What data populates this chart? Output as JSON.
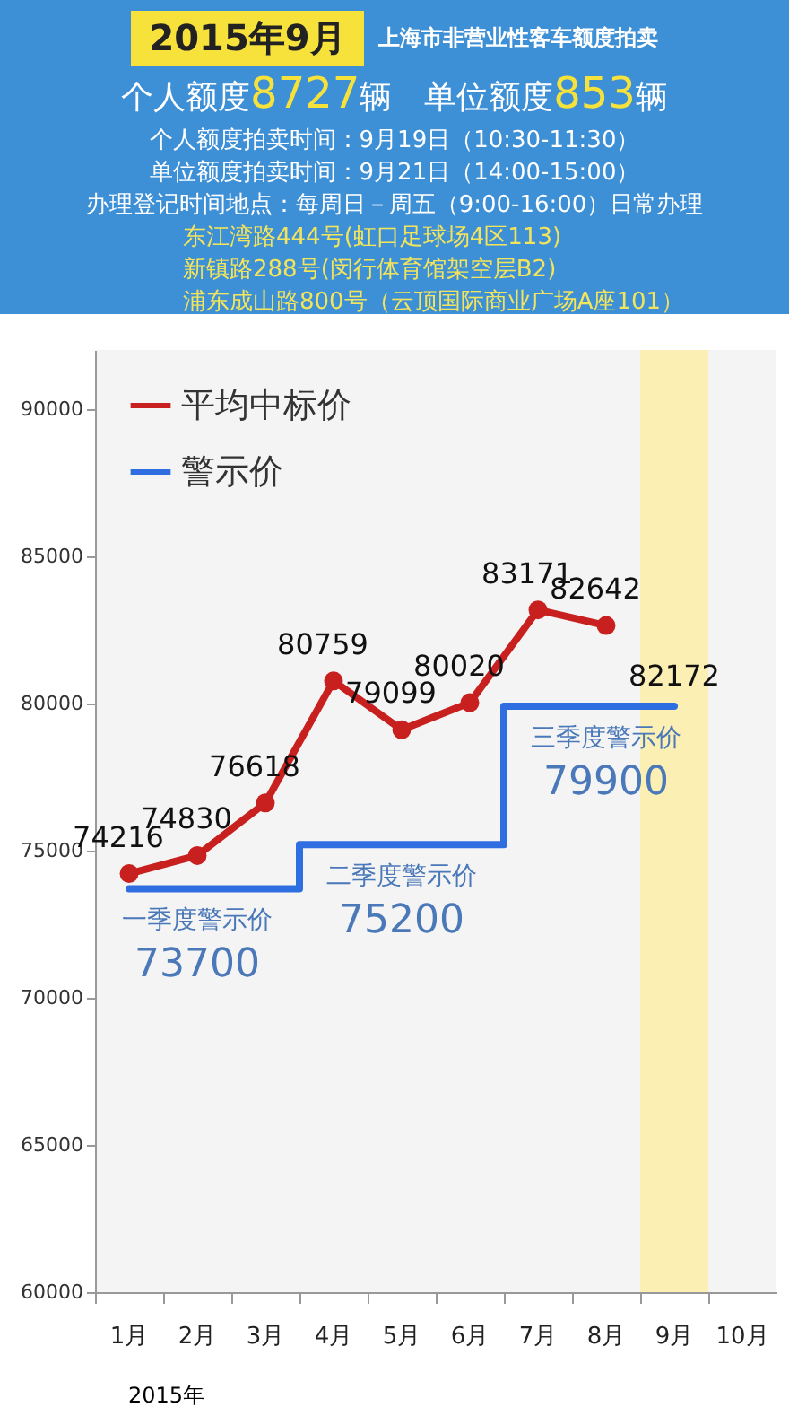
{
  "chart_data": {
    "type": "line",
    "title": "2015年9月",
    "subtitle": "上海市非营业性客车额度拍卖",
    "xlabel": "2015年",
    "categories": [
      "1月",
      "2月",
      "3月",
      "4月",
      "5月",
      "6月",
      "7月",
      "8月",
      "9月",
      "10月"
    ],
    "series": [
      {
        "name": "平均中标价",
        "color": "#c8201e",
        "marker": "circle",
        "values": [
          74216,
          74830,
          76618,
          80759,
          79099,
          80020,
          83171,
          82642,
          null,
          null
        ],
        "value_labels": [
          "74216",
          "74830",
          "76618",
          "80759",
          "79099",
          "80020",
          "83171",
          "82642",
          null,
          null
        ]
      },
      {
        "name": "警示价",
        "type": "step",
        "color": "#2f6ee0",
        "marker": "none",
        "values": [
          73700,
          73700,
          73700,
          75200,
          75200,
          75200,
          79900,
          79900,
          79900,
          null
        ],
        "value_labels": [
          null,
          "73700",
          null,
          null,
          "75200",
          null,
          null,
          "79900",
          null,
          null
        ]
      }
    ],
    "ylim": [
      60000,
      92000
    ],
    "yticks": [
      60000,
      65000,
      70000,
      75000,
      80000,
      85000,
      90000
    ],
    "grid": false,
    "legend": "top left",
    "bands": [
      {
        "axis": "x",
        "from": "9月",
        "to": "9月",
        "color": "#fbefb4"
      }
    ],
    "annotations": [
      "个人额度8727辆　单位额度853辆",
      "个人额度拍卖时间：9月19日（10:30-11:30）",
      "单位额度拍卖时间：9月21日（14:00-15:00）",
      "办理登记时间地点：每周日－周五（9:00-16:00）日常办理",
      "东江湾路444号(虹口足球场4区113)",
      "新镇路288号(闵行体育馆架空层B2)",
      "浦东成山路800号（云顶国际商业广场A座101）",
      {
        "text": "一季度警示价",
        "x": "2月",
        "y": 73700
      },
      {
        "text": "二季度警示价",
        "x": "5月",
        "y": 75200
      },
      {
        "text": "三季度警示价",
        "x": "8月",
        "y": 79900
      },
      "82172"
    ]
  }
}
